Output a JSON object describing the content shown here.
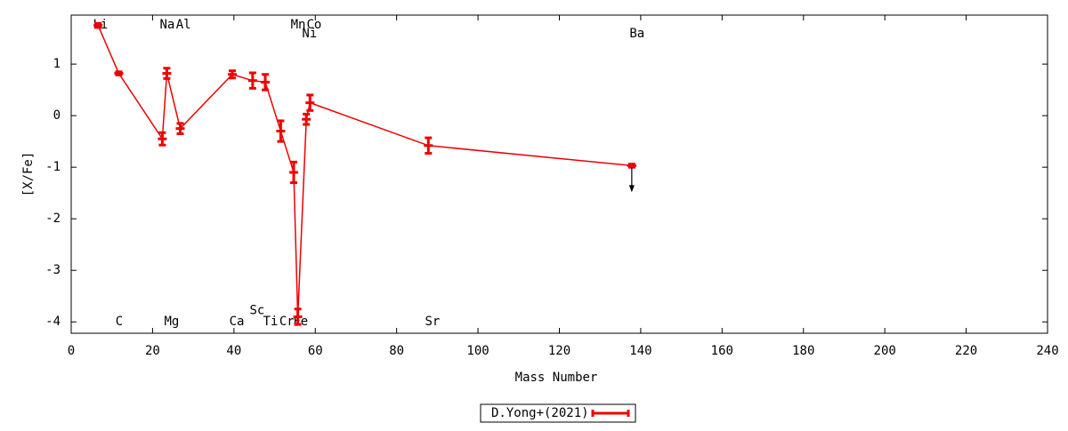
{
  "chart_data": {
    "type": "errorbar",
    "xlabel": "Mass Number",
    "ylabel": "[X/Fe]",
    "xlim": [
      0,
      240
    ],
    "ylim": [
      -4.22,
      1.95
    ],
    "xticks": [
      0,
      20,
      40,
      60,
      80,
      100,
      120,
      140,
      160,
      180,
      200,
      220,
      240
    ],
    "yticks": [
      -4,
      -3,
      -2,
      -1,
      0,
      1
    ],
    "series": [
      {
        "name": "D.Yong+(2021)",
        "color": "#ee0000",
        "x": [
          6.6,
          11.7,
          22.4,
          23.5,
          26.8,
          39.6,
          44.6,
          47.7,
          51.5,
          54.7,
          55.7,
          57.8,
          58.7,
          87.8,
          137.8
        ],
        "values": [
          1.75,
          0.82,
          -0.45,
          0.82,
          -0.25,
          0.8,
          0.68,
          0.65,
          -0.3,
          -1.1,
          -3.9,
          -0.07,
          0.25,
          -0.58,
          -0.97
        ],
        "errors": [
          0.04,
          0.03,
          0.12,
          0.1,
          0.1,
          0.07,
          0.15,
          0.15,
          0.2,
          0.2,
          0.15,
          0.1,
          0.15,
          0.15,
          0.03
        ],
        "upper_limits": [
          false,
          false,
          false,
          false,
          false,
          false,
          false,
          false,
          false,
          false,
          false,
          false,
          false,
          false,
          true
        ]
      }
    ],
    "annotations": [
      {
        "text": "Li",
        "x": 7.2,
        "y": 1.76
      },
      {
        "text": "C",
        "x": 11.8,
        "y": -4
      },
      {
        "text": "Na",
        "x": 23.6,
        "y": 1.76
      },
      {
        "text": "Al",
        "x": 27.6,
        "y": 1.76
      },
      {
        "text": "Mg",
        "x": 24.7,
        "y": -4
      },
      {
        "text": "Ca",
        "x": 40.7,
        "y": -4
      },
      {
        "text": "Sc",
        "x": 45.7,
        "y": -3.78
      },
      {
        "text": "Ti",
        "x": 49,
        "y": -4
      },
      {
        "text": "Cr",
        "x": 53,
        "y": -4
      },
      {
        "text": "Fe",
        "x": 56.4,
        "y": -4
      },
      {
        "text": "Mn",
        "x": 55.8,
        "y": 1.76
      },
      {
        "text": "Co",
        "x": 59.7,
        "y": 1.76
      },
      {
        "text": "Ni",
        "x": 58.6,
        "y": 1.59
      },
      {
        "text": "Sr",
        "x": 88.8,
        "y": -4
      },
      {
        "text": "Ba",
        "x": 139.1,
        "y": 1.59
      }
    ]
  }
}
